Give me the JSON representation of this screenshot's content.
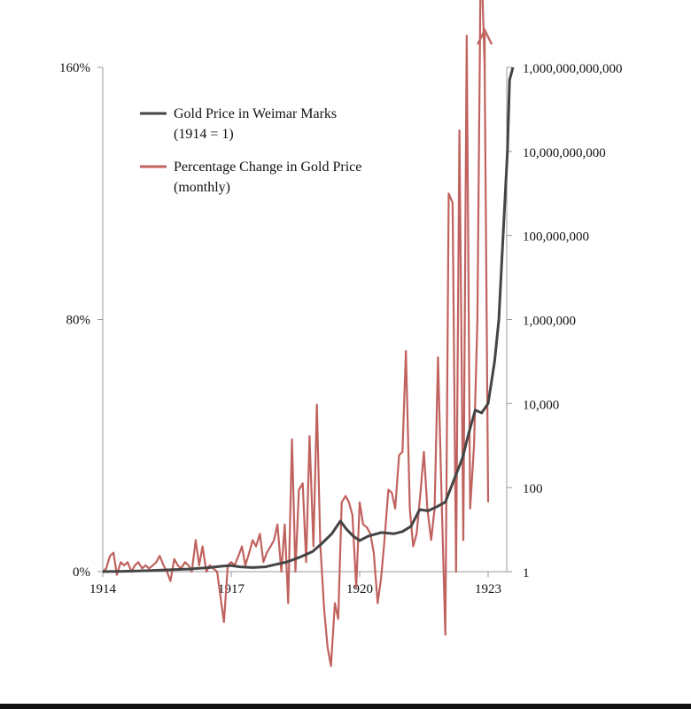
{
  "chart_data": {
    "type": "line",
    "title": "",
    "xlabel": "",
    "ylabel_left": "",
    "ylabel_right": "",
    "x_ticks": [
      {
        "value": 1914,
        "label": "1914"
      },
      {
        "value": 1917,
        "label": "1917"
      },
      {
        "value": 1920,
        "label": "1920"
      },
      {
        "value": 1923,
        "label": "1923"
      }
    ],
    "xlim": [
      1914,
      1923.6
    ],
    "y_left": {
      "range": [
        0,
        160
      ],
      "ticks": [
        {
          "value": 0,
          "label": "0%"
        },
        {
          "value": 80,
          "label": "80%"
        },
        {
          "value": 160,
          "label": "160%"
        }
      ]
    },
    "y_right": {
      "scale": "log",
      "range": [
        1,
        1000000000000
      ],
      "ticks": [
        {
          "value": 1,
          "label": "1"
        },
        {
          "value": 100,
          "label": "100"
        },
        {
          "value": 10000,
          "label": "10,000"
        },
        {
          "value": 1000000,
          "label": "1,000,000"
        },
        {
          "value": 100000000,
          "label": "100,000,000"
        },
        {
          "value": 10000000000,
          "label": "10,000,000,000"
        },
        {
          "value": 1000000000000,
          "label": "1,000,000,000,000"
        }
      ]
    },
    "legend": {
      "placement": "top-left",
      "entries": [
        {
          "line1": "Gold Price in Weimar Marks",
          "line2": "(1914 = 1)",
          "color": "#444444"
        },
        {
          "line1": "Percentage Change in Gold Price",
          "line2": "(monthly)",
          "color": "#c0625e"
        }
      ]
    },
    "series": [
      {
        "axis": "right",
        "color": "#444444",
        "x": [
          1914.0,
          1914.5,
          1915.0,
          1915.5,
          1916.0,
          1916.5,
          1916.8,
          1917.0,
          1917.2,
          1917.5,
          1917.8,
          1918.0,
          1918.3,
          1918.6,
          1918.9,
          1919.1,
          1919.35,
          1919.55,
          1919.7,
          1919.85,
          1920.0,
          1920.2,
          1920.5,
          1920.8,
          1921.0,
          1921.2,
          1921.4,
          1921.6,
          1921.8,
          1922.0,
          1922.2,
          1922.4,
          1922.55,
          1922.7,
          1922.85,
          1923.0,
          1923.15,
          1923.25,
          1923.35,
          1923.45,
          1923.5,
          1923.58
        ],
        "y": [
          1,
          1.02,
          1.05,
          1.1,
          1.15,
          1.25,
          1.35,
          1.4,
          1.3,
          1.25,
          1.3,
          1.45,
          1.7,
          2.2,
          3.0,
          4.5,
          8,
          16,
          10,
          7,
          5.5,
          7,
          8.5,
          8,
          9,
          12,
          30,
          28,
          35,
          45,
          150,
          500,
          2000,
          7000,
          6000,
          10000,
          100000,
          1000000,
          100000000,
          10000000000,
          500000000000,
          1000000000000
        ]
      },
      {
        "axis": "left",
        "color": "#c0625e",
        "x": [
          1914.0,
          1914.08,
          1914.17,
          1914.25,
          1914.33,
          1914.42,
          1914.5,
          1914.58,
          1914.67,
          1914.75,
          1914.83,
          1914.92,
          1915.0,
          1915.08,
          1915.17,
          1915.25,
          1915.33,
          1915.42,
          1915.5,
          1915.58,
          1915.67,
          1915.75,
          1915.83,
          1915.92,
          1916.0,
          1916.08,
          1916.17,
          1916.25,
          1916.33,
          1916.42,
          1916.5,
          1916.58,
          1916.67,
          1916.75,
          1916.83,
          1916.92,
          1917.0,
          1917.08,
          1917.17,
          1917.25,
          1917.33,
          1917.42,
          1917.5,
          1917.58,
          1917.67,
          1917.75,
          1917.83,
          1917.92,
          1918.0,
          1918.08,
          1918.17,
          1918.25,
          1918.33,
          1918.42,
          1918.5,
          1918.58,
          1918.67,
          1918.75,
          1918.83,
          1918.92,
          1919.0,
          1919.08,
          1919.17,
          1919.25,
          1919.33,
          1919.42,
          1919.5,
          1919.58,
          1919.67,
          1919.75,
          1919.83,
          1919.92,
          1920.0,
          1920.08,
          1920.17,
          1920.25,
          1920.33,
          1920.42,
          1920.5,
          1920.58,
          1920.67,
          1920.75,
          1920.83,
          1920.92,
          1921.0,
          1921.08,
          1921.17,
          1921.25,
          1921.33,
          1921.42,
          1921.5,
          1921.58,
          1921.67,
          1921.75,
          1921.83,
          1921.92,
          1922.0,
          1922.08,
          1922.17,
          1922.25,
          1922.33,
          1922.42,
          1922.5,
          1922.58,
          1922.67,
          1922.75,
          1922.83,
          1922.92,
          1923.0
        ],
        "y": [
          0,
          1,
          5,
          6,
          -1,
          3,
          2,
          3,
          0,
          2,
          3,
          1,
          2,
          1,
          2,
          3,
          5,
          2,
          0,
          -3,
          4,
          2,
          1,
          3,
          2,
          0,
          10,
          2,
          8,
          0,
          2,
          1,
          0,
          -8,
          -16,
          2,
          3,
          2,
          5,
          8,
          2,
          6,
          10,
          8,
          12,
          3,
          6,
          8,
          10,
          15,
          0,
          15,
          -10,
          42,
          0,
          26,
          28,
          3,
          43,
          8,
          53,
          9,
          -12,
          -24,
          -30,
          -10,
          -15,
          22,
          24,
          22,
          18,
          -5,
          22,
          15,
          14,
          12,
          6,
          -10,
          -2,
          10,
          26,
          25,
          20,
          37,
          38,
          70,
          20,
          8,
          12,
          25,
          38,
          20,
          10,
          20,
          68,
          20,
          -20,
          120,
          117,
          0,
          140,
          10,
          170,
          20,
          40,
          80,
          200,
          160,
          22
        ]
      }
    ]
  }
}
